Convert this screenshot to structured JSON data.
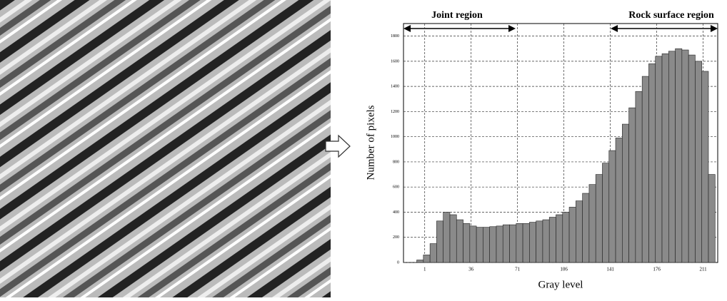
{
  "chart_data": {
    "type": "histogram",
    "xlabel": "Gray level",
    "ylabel": "Number of pixels",
    "annotations": [
      "Joint region",
      "Rock surface region"
    ],
    "bins": [
      -5,
      0,
      5,
      10,
      15,
      20,
      25,
      30,
      35,
      40,
      45,
      50,
      55,
      60,
      65,
      70,
      75,
      80,
      85,
      90,
      95,
      100,
      105,
      110,
      115,
      120,
      125,
      130,
      135,
      140,
      145,
      150,
      155,
      160,
      165,
      170,
      175,
      180,
      185,
      190,
      195,
      200,
      205,
      210,
      215,
      220
    ],
    "values": [
      20,
      60,
      150,
      330,
      400,
      380,
      340,
      310,
      290,
      280,
      280,
      285,
      290,
      300,
      300,
      310,
      310,
      320,
      330,
      340,
      360,
      380,
      400,
      440,
      490,
      550,
      620,
      700,
      790,
      890,
      990,
      1100,
      1230,
      1360,
      1480,
      1580,
      1640,
      1660,
      1680,
      1700,
      1690,
      1650,
      1600,
      1520,
      700
    ],
    "color": "#8a8a8a",
    "xlim": [
      -15,
      222
    ],
    "xticks": [
      1,
      36,
      71,
      106,
      141,
      176,
      211
    ],
    "ylim": [
      0,
      1900
    ],
    "yticks": [
      0,
      200,
      400,
      600,
      800,
      1000,
      1200,
      1400,
      1600,
      1800
    ],
    "grid": true
  }
}
